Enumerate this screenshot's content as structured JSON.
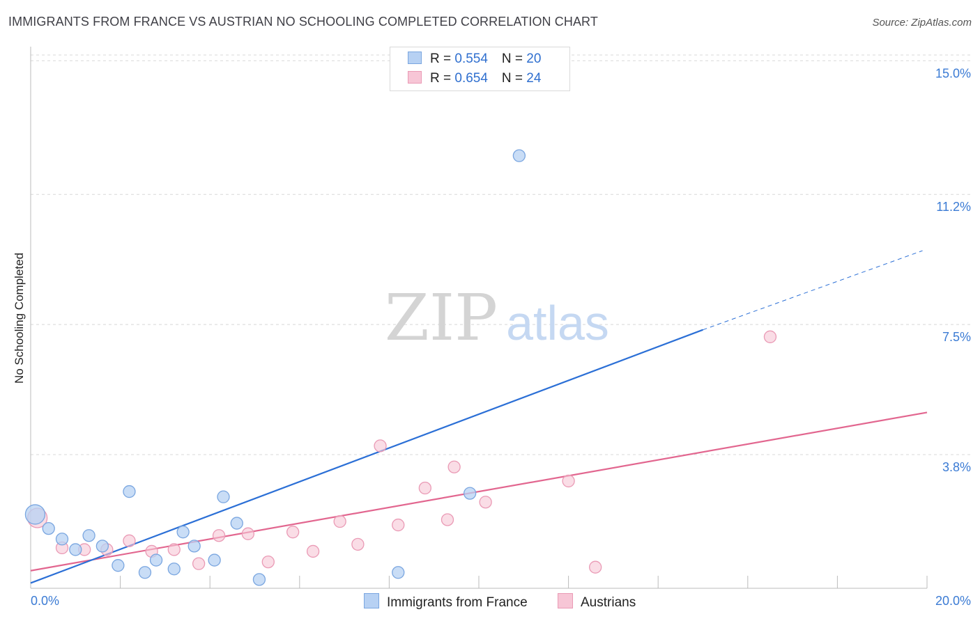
{
  "title": "IMMIGRANTS FROM FRANCE VS AUSTRIAN NO SCHOOLING COMPLETED CORRELATION CHART",
  "source": "Source: ZipAtlas.com",
  "watermark": {
    "zip": "ZIP",
    "atlas": "atlas"
  },
  "legend": {
    "rows": [
      {
        "r_label": "R = ",
        "r_value": "0.554",
        "n_label": "N = ",
        "n_value": "20"
      },
      {
        "r_label": "R = ",
        "r_value": "0.654",
        "n_label": "N = ",
        "n_value": "24"
      }
    ]
  },
  "bottom_legend": [
    "Immigrants from France",
    "Austrians"
  ],
  "colors": {
    "blue_fill": "#b7d1f3",
    "blue_stroke": "#7aa6e0",
    "blue_line": "#2b6fd6",
    "pink_fill": "#f7c6d6",
    "pink_stroke": "#ea9ab5",
    "pink_line": "#e2668f",
    "axis_text": "#3b7bd4",
    "grid": "#d8d8d8"
  },
  "chart_data": {
    "type": "scatter",
    "title": "IMMIGRANTS FROM FRANCE VS AUSTRIAN NO SCHOOLING COMPLETED CORRELATION CHART",
    "xlabel": "",
    "ylabel": "No Schooling Completed",
    "xlim": [
      0,
      20
    ],
    "ylim": [
      0,
      15.5
    ],
    "x_tick_labels": [
      "0.0%",
      "20.0%"
    ],
    "y_ticks": [
      3.8,
      7.5,
      11.2,
      15.0
    ],
    "y_tick_labels": [
      "3.8%",
      "7.5%",
      "11.2%",
      "15.0%"
    ],
    "grid": true,
    "series": [
      {
        "name": "Immigrants from France",
        "color": "blue",
        "r": 0.554,
        "n": 20,
        "points": [
          [
            0.1,
            2.1
          ],
          [
            0.4,
            1.7
          ],
          [
            0.7,
            1.4
          ],
          [
            1.0,
            1.1
          ],
          [
            1.3,
            1.5
          ],
          [
            1.6,
            1.2
          ],
          [
            1.95,
            0.65
          ],
          [
            2.2,
            2.75
          ],
          [
            2.55,
            0.45
          ],
          [
            2.8,
            0.8
          ],
          [
            3.2,
            0.55
          ],
          [
            3.4,
            1.6
          ],
          [
            3.65,
            1.2
          ],
          [
            4.1,
            0.8
          ],
          [
            4.3,
            2.6
          ],
          [
            4.6,
            1.85
          ],
          [
            5.1,
            0.25
          ],
          [
            8.2,
            0.45
          ],
          [
            9.8,
            2.7
          ],
          [
            10.9,
            12.3
          ]
        ],
        "trend": {
          "x0": 0,
          "y0": 0.15,
          "x1": 15.0,
          "y1": 7.35,
          "dash_to_x": 19.9,
          "dash_to_y": 9.6
        }
      },
      {
        "name": "Austrians",
        "color": "pink",
        "points": [
          [
            0.15,
            2.0
          ],
          [
            0.7,
            1.15
          ],
          [
            1.2,
            1.1
          ],
          [
            1.7,
            1.1
          ],
          [
            2.2,
            1.35
          ],
          [
            2.7,
            1.05
          ],
          [
            3.2,
            1.1
          ],
          [
            3.75,
            0.7
          ],
          [
            4.2,
            1.5
          ],
          [
            4.85,
            1.55
          ],
          [
            5.3,
            0.75
          ],
          [
            5.85,
            1.6
          ],
          [
            6.3,
            1.05
          ],
          [
            6.9,
            1.9
          ],
          [
            7.3,
            1.25
          ],
          [
            7.8,
            4.05
          ],
          [
            8.2,
            1.8
          ],
          [
            8.8,
            2.85
          ],
          [
            9.3,
            1.95
          ],
          [
            9.45,
            3.45
          ],
          [
            10.15,
            2.45
          ],
          [
            12.0,
            3.05
          ],
          [
            12.6,
            0.6
          ],
          [
            16.5,
            7.15
          ]
        ],
        "trend": {
          "x0": 0,
          "y0": 0.5,
          "x1": 20.0,
          "y1": 5.0
        }
      }
    ]
  }
}
